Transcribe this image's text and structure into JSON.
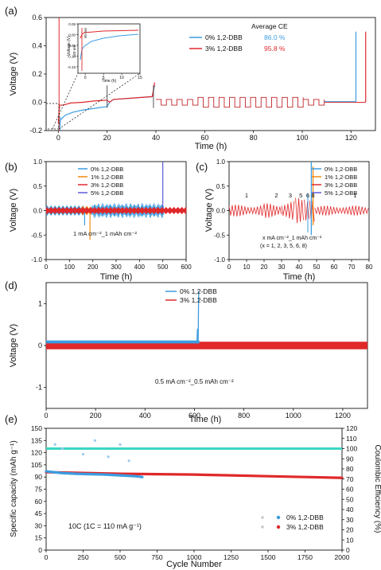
{
  "colors": {
    "blue": "#3b9ce0",
    "red": "#e0282a",
    "orange": "#f08a12",
    "violet": "#5a5ad8",
    "teal": "#3dd6c4",
    "axis": "#111111"
  },
  "chart_data": [
    {
      "panel": "(a)",
      "type": "line",
      "xlabel": "Time (h)",
      "ylabel": "Voltage (V)",
      "xlim": [
        -5,
        130
      ],
      "ylim": [
        -0.2,
        0.6
      ],
      "xticks": [
        0,
        20,
        40,
        60,
        80,
        100,
        120
      ],
      "yticks": [
        -0.2,
        0.0,
        0.2,
        0.4,
        0.6
      ],
      "legend_title": "Average CE",
      "legend_placement": "top-right",
      "series": [
        {
          "name": "0% 1,2-DBB",
          "ce": "86.0 %",
          "color": "#3b9ce0",
          "x": [
            0,
            1,
            3,
            6,
            10,
            14,
            18,
            20,
            21,
            22.5,
            38.5,
            39.5
          ],
          "y": [
            -0.18,
            -0.12,
            -0.09,
            -0.07,
            -0.055,
            -0.045,
            -0.035,
            -0.03,
            0.0,
            0.02,
            0.04,
            0.12
          ]
        },
        {
          "name": "3% 1,2-DBB",
          "ce": "95.8 %",
          "color": "#e0282a",
          "x": [
            0,
            0.5,
            2,
            5,
            10,
            15,
            20,
            21,
            22.5,
            38.5,
            39.5
          ],
          "y": [
            -0.15,
            -0.02,
            -0.02,
            -0.005,
            0.0,
            0.01,
            0.015,
            0.0,
            0.02,
            0.04,
            0.14
          ]
        }
      ],
      "cycling_segment": {
        "x_start": 40,
        "x_end": 109,
        "blue_spike_x": 122,
        "red_spike_x": 126,
        "spike_y": 0.5
      },
      "inset": {
        "xlabel": "Time (h)",
        "ylabel": "Voltage (V)",
        "xlim": [
          -2,
          15
        ],
        "ylim": [
          -0.18,
          0.05
        ],
        "xticks": [
          0,
          5,
          10,
          15
        ],
        "yticks": [
          0.05,
          0.0,
          -0.05,
          -0.1,
          -0.15
        ],
        "annotations": [
          "120 mV",
          "90 mV"
        ]
      }
    },
    {
      "panel": "(b)",
      "type": "line",
      "xlabel": "Time (h)",
      "ylabel": "Voltage (V)",
      "xlim": [
        0,
        600
      ],
      "ylim": [
        -1.0,
        1.0
      ],
      "xticks": [
        0,
        100,
        200,
        300,
        400,
        500,
        600
      ],
      "yticks": [
        -1.0,
        -0.5,
        0.0,
        0.5,
        1.0
      ],
      "annotation": "1 mA cm⁻²_1 mAh cm⁻²",
      "legend_placement": "top-center",
      "series": [
        {
          "name": "0% 1,2-DBB",
          "color": "#3b9ce0",
          "x_end": 165,
          "amplitude": 0.1
        },
        {
          "name": "1% 1,2-DBB",
          "color": "#f08a12",
          "x_end": 190,
          "amplitude": 0.09
        },
        {
          "name": "3% 1,2-DBB",
          "color": "#e0282a",
          "x_end": 600,
          "amplitude": 0.07
        },
        {
          "name": "5% 1,2-DBB",
          "color": "#5a5ad8",
          "x_end": 505,
          "amplitude": 0.12
        }
      ]
    },
    {
      "panel": "(c)",
      "type": "line",
      "xlabel": "Time (h)",
      "ylabel": "Voltage (V)",
      "xlim": [
        0,
        80
      ],
      "ylim": [
        -1.0,
        1.0
      ],
      "xticks": [
        0,
        10,
        20,
        30,
        40,
        50,
        60,
        70,
        80
      ],
      "yticks": [
        -1.0,
        -0.5,
        0.0,
        0.5,
        1.0
      ],
      "annotation_line1": "x mA cm⁻²_1 mAh cm⁻²",
      "annotation_line2": "(x = 1, 2, 3, 5, 6, 8)",
      "rate_labels": [
        {
          "text": "1",
          "x": 10
        },
        {
          "text": "2",
          "x": 27
        },
        {
          "text": "3",
          "x": 35
        },
        {
          "text": "5",
          "x": 41
        },
        {
          "text": "6",
          "x": 45
        },
        {
          "text": "8",
          "x": 48
        },
        {
          "text": "1",
          "x": 72
        }
      ],
      "legend_placement": "top-right",
      "series": [
        {
          "name": "0% 1,2-DBB",
          "color": "#3b9ce0"
        },
        {
          "name": "1% 1,2-DBB",
          "color": "#f08a12"
        },
        {
          "name": "3% 1,2-DBB",
          "color": "#e0282a"
        },
        {
          "name": "5% 1,2-DBB",
          "color": "#5a5ad8"
        }
      ]
    },
    {
      "panel": "(d)",
      "type": "line",
      "xlabel": "Time (h)",
      "ylabel": "Voltage (V)",
      "xlim": [
        0,
        1300
      ],
      "ylim": [
        -1.5,
        1.5
      ],
      "xticks": [
        0,
        200,
        400,
        600,
        800,
        1000,
        1200
      ],
      "yticks": [
        -1,
        0,
        1
      ],
      "annotation": "0.5 mA cm⁻²_0.5 mAh cm⁻²",
      "legend_placement": "top-center",
      "series": [
        {
          "name": "0% 1,2-DBB",
          "color": "#3b9ce0",
          "x_end": 620,
          "spike_y": 1.3
        },
        {
          "name": "3% 1,2-DBB",
          "color": "#e0282a",
          "x_end": 1300
        }
      ]
    },
    {
      "panel": "(e)",
      "type": "scatter",
      "xlabel": "Cycle Number",
      "ylabel": "Specific capacity (mAh g⁻¹)",
      "ylabel_right": "Coulombic Efficiency (%)",
      "xlim": [
        0,
        2000
      ],
      "ylim": [
        0,
        150
      ],
      "ylim_right": [
        0,
        120
      ],
      "xticks": [
        0,
        250,
        500,
        750,
        1000,
        1250,
        1500,
        1750,
        2000
      ],
      "yticks": [
        0,
        15,
        30,
        45,
        60,
        75,
        90,
        105,
        120,
        135,
        150
      ],
      "yticks_right": [
        0,
        10,
        20,
        30,
        40,
        50,
        60,
        70,
        80,
        90,
        100,
        110,
        120
      ],
      "annotation": "10C  (1C = 110 mA g⁻¹)",
      "legend_placement": "bottom-right",
      "series": [
        {
          "name": "0% 1,2-DBB",
          "color": "#3b9ce0",
          "cycles": [
            0,
            100,
            200,
            300,
            400,
            500,
            600,
            650
          ],
          "capacity": [
            97,
            95,
            94,
            93.5,
            93,
            92,
            91,
            90
          ]
        },
        {
          "name": "3% 1,2-DBB",
          "color": "#e0282a",
          "cycles": [
            0,
            250,
            500,
            750,
            1000,
            1250,
            1500,
            1750,
            2000
          ],
          "capacity": [
            96,
            95,
            94,
            93.5,
            93,
            92,
            91,
            90,
            89
          ]
        },
        {
          "name": "Coulombic efficiency",
          "color": "#3dd6c4",
          "cycles": [
            0,
            2000
          ],
          "ce": [
            100,
            100
          ]
        }
      ]
    }
  ]
}
